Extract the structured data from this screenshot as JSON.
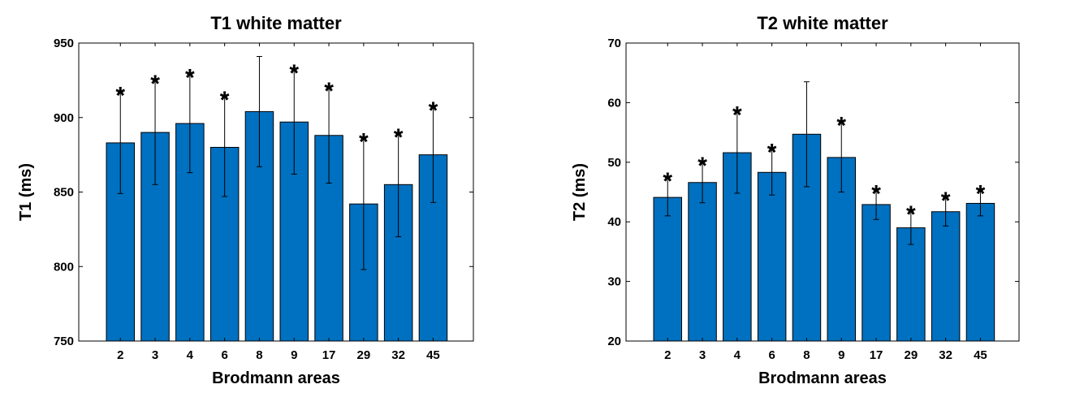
{
  "colors": {
    "bar": "#0070C0",
    "bar_edge": "#000000",
    "axis": "#000000",
    "background": "#ffffff"
  },
  "chart_data": [
    {
      "type": "bar",
      "title": "T1 white matter",
      "xlabel": "Brodmann areas",
      "ylabel": "T1 (ms)",
      "ylim": [
        750,
        950
      ],
      "yticks": [
        750,
        800,
        850,
        900,
        950
      ],
      "categories": [
        "2",
        "3",
        "4",
        "6",
        "8",
        "9",
        "17",
        "29",
        "32",
        "45"
      ],
      "values": [
        883,
        890,
        896,
        880,
        904,
        897,
        888,
        842,
        855,
        875
      ],
      "error_upper": [
        917,
        925,
        929,
        914,
        941,
        932,
        920,
        886,
        889,
        907
      ],
      "error_lower": [
        849,
        855,
        863,
        847,
        867,
        862,
        856,
        798,
        820,
        843
      ],
      "significant": [
        true,
        true,
        true,
        true,
        false,
        true,
        true,
        true,
        true,
        true
      ],
      "significance_marker": "*",
      "grid": false,
      "legend": "none"
    },
    {
      "type": "bar",
      "title": "T2 white matter",
      "xlabel": "Brodmann areas",
      "ylabel": "T2 (ms)",
      "ylim": [
        20,
        70
      ],
      "yticks": [
        20,
        30,
        40,
        50,
        60,
        70
      ],
      "categories": [
        "2",
        "3",
        "4",
        "6",
        "8",
        "9",
        "17",
        "29",
        "32",
        "45"
      ],
      "values": [
        44.1,
        46.6,
        51.6,
        48.3,
        54.7,
        50.8,
        42.9,
        39.0,
        41.7,
        43.1
      ],
      "error_upper": [
        47.4,
        50.0,
        58.5,
        52.2,
        63.5,
        56.7,
        45.3,
        41.8,
        44.1,
        45.3
      ],
      "error_lower": [
        41.0,
        43.2,
        44.8,
        44.5,
        45.9,
        45.0,
        40.4,
        36.2,
        39.3,
        41.0
      ],
      "significant": [
        true,
        true,
        true,
        true,
        false,
        true,
        true,
        true,
        true,
        true
      ],
      "significance_marker": "*",
      "grid": false,
      "legend": "none"
    }
  ]
}
